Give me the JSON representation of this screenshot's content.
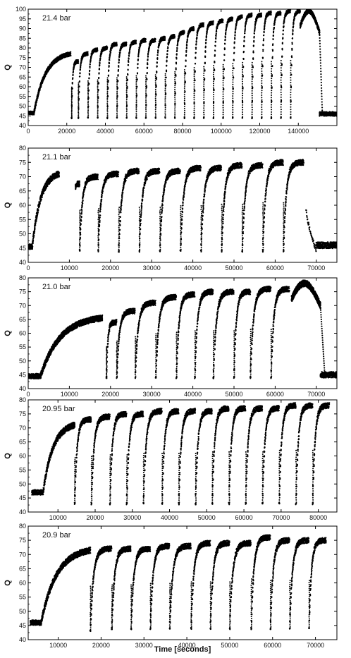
{
  "figure": {
    "xlabel": "Time  [seconds]"
  },
  "colors": {
    "trace": "#000000",
    "frame": "#000000"
  },
  "chart_data": [
    {
      "type": "scatter",
      "panel_label": "21.4 bar",
      "ylabel": "Q",
      "xlim": [
        0,
        160000
      ],
      "ylim": [
        40,
        100
      ],
      "xticks": [
        0,
        20000,
        40000,
        60000,
        80000,
        100000,
        120000,
        140000
      ],
      "yticks": [
        40,
        45,
        50,
        55,
        60,
        65,
        70,
        75,
        80,
        85,
        90,
        95,
        100
      ],
      "baseline": {
        "x0": 0,
        "x1": 3000,
        "y": 46.5
      },
      "initial_rise": {
        "x0": 3000,
        "x1": 22000,
        "y0": 46.5,
        "y1": 77
      },
      "cycles": [
        {
          "start": 22500,
          "end": 26000,
          "min": 44,
          "max": 73
        },
        {
          "start": 26000,
          "end": 31000,
          "min": 44,
          "max": 77
        },
        {
          "start": 31000,
          "end": 36000,
          "min": 44,
          "max": 79
        },
        {
          "start": 36000,
          "end": 41000,
          "min": 44,
          "max": 80
        },
        {
          "start": 41000,
          "end": 46000,
          "min": 44,
          "max": 82
        },
        {
          "start": 46000,
          "end": 51000,
          "min": 44,
          "max": 82
        },
        {
          "start": 51000,
          "end": 56000,
          "min": 44,
          "max": 83
        },
        {
          "start": 56000,
          "end": 61000,
          "min": 44,
          "max": 84
        },
        {
          "start": 61000,
          "end": 66000,
          "min": 44,
          "max": 84
        },
        {
          "start": 66000,
          "end": 71000,
          "min": 44,
          "max": 85
        },
        {
          "start": 71000,
          "end": 76000,
          "min": 44,
          "max": 86
        },
        {
          "start": 76000,
          "end": 81000,
          "min": 44,
          "max": 88
        },
        {
          "start": 81000,
          "end": 86000,
          "min": 44,
          "max": 90
        },
        {
          "start": 86000,
          "end": 91000,
          "min": 44,
          "max": 92
        },
        {
          "start": 91000,
          "end": 96000,
          "min": 44,
          "max": 93
        },
        {
          "start": 96000,
          "end": 101000,
          "min": 44,
          "max": 94
        },
        {
          "start": 101000,
          "end": 106000,
          "min": 44,
          "max": 95
        },
        {
          "start": 106000,
          "end": 111000,
          "min": 44,
          "max": 96
        },
        {
          "start": 111000,
          "end": 116000,
          "min": 44,
          "max": 97
        },
        {
          "start": 116000,
          "end": 121000,
          "min": 44,
          "max": 97
        },
        {
          "start": 121000,
          "end": 126000,
          "min": 44,
          "max": 98
        },
        {
          "start": 126000,
          "end": 131000,
          "min": 44,
          "max": 98
        },
        {
          "start": 131000,
          "end": 136000,
          "min": 44,
          "max": 99
        },
        {
          "start": 136000,
          "end": 141000,
          "min": 44,
          "max": 99
        }
      ],
      "dome": {
        "x0": 141000,
        "x1": 151000,
        "ymin": 88,
        "ymax": 99
      },
      "tail": {
        "x0": 151000,
        "x1": 160000,
        "y": 46
      }
    },
    {
      "type": "scatter",
      "panel_label": "21.1 bar",
      "ylabel": "Q",
      "xlim": [
        0,
        75000
      ],
      "ylim": [
        40,
        80
      ],
      "xticks": [
        0,
        10000,
        20000,
        30000,
        40000,
        50000,
        60000,
        70000
      ],
      "yticks": [
        40,
        45,
        50,
        55,
        60,
        65,
        70,
        75,
        80
      ],
      "baseline": {
        "x0": 0,
        "x1": 1000,
        "y": 45.5
      },
      "initial_rise": {
        "x0": 1000,
        "x1": 7500,
        "y0": 45.5,
        "y1": 71
      },
      "cycles": [
        {
          "start": 11500,
          "end": 12500,
          "min": 66,
          "max": 67.5
        },
        {
          "start": 12500,
          "end": 17000,
          "min": 44,
          "max": 70
        },
        {
          "start": 17000,
          "end": 22000,
          "min": 44,
          "max": 71
        },
        {
          "start": 22000,
          "end": 27000,
          "min": 44,
          "max": 72
        },
        {
          "start": 27000,
          "end": 32000,
          "min": 44,
          "max": 72
        },
        {
          "start": 32000,
          "end": 37000,
          "min": 44,
          "max": 72
        },
        {
          "start": 37000,
          "end": 42000,
          "min": 44,
          "max": 73
        },
        {
          "start": 42000,
          "end": 47000,
          "min": 44,
          "max": 73
        },
        {
          "start": 47000,
          "end": 52000,
          "min": 44,
          "max": 74
        },
        {
          "start": 52000,
          "end": 57000,
          "min": 44,
          "max": 74
        },
        {
          "start": 57000,
          "end": 62000,
          "min": 44,
          "max": 75
        },
        {
          "start": 62000,
          "end": 67000,
          "min": 44,
          "max": 75
        }
      ],
      "spike": {
        "x0": 67500,
        "x1": 70000,
        "ymin": 44,
        "ymax": 59
      },
      "tail": {
        "x0": 70000,
        "x1": 75000,
        "y": 46
      }
    },
    {
      "type": "scatter",
      "panel_label": "21.0 bar",
      "ylabel": "Q",
      "xlim": [
        0,
        75000
      ],
      "ylim": [
        40,
        80
      ],
      "xticks": [
        0,
        10000,
        20000,
        30000,
        40000,
        50000,
        60000,
        70000
      ],
      "yticks": [
        40,
        45,
        50,
        55,
        60,
        65,
        70,
        75,
        80
      ],
      "baseline": {
        "x0": 0,
        "x1": 3000,
        "y": 44.5
      },
      "initial_rise": {
        "x0": 3000,
        "x1": 18000,
        "y0": 44.5,
        "y1": 65.5
      },
      "cycles": [
        {
          "start": 19000,
          "end": 21500,
          "min": 44,
          "max": 64
        },
        {
          "start": 21500,
          "end": 26000,
          "min": 44,
          "max": 68
        },
        {
          "start": 26000,
          "end": 31000,
          "min": 44,
          "max": 71
        },
        {
          "start": 31000,
          "end": 36000,
          "min": 44,
          "max": 73
        },
        {
          "start": 36000,
          "end": 40500,
          "min": 44,
          "max": 74
        },
        {
          "start": 40500,
          "end": 45000,
          "min": 44,
          "max": 75
        },
        {
          "start": 45000,
          "end": 50000,
          "min": 44,
          "max": 75
        },
        {
          "start": 50000,
          "end": 54000,
          "min": 44,
          "max": 75
        },
        {
          "start": 54000,
          "end": 59000,
          "min": 44,
          "max": 76
        },
        {
          "start": 59000,
          "end": 63500,
          "min": 44,
          "max": 76
        }
      ],
      "dome": {
        "x0": 64000,
        "x1": 71000,
        "ymin": 70,
        "ymax": 78
      },
      "tail": {
        "x0": 71000,
        "x1": 75000,
        "y": 45
      }
    },
    {
      "type": "scatter",
      "panel_label": "20.95 bar",
      "ylabel": "Q",
      "xlim": [
        2000,
        85000
      ],
      "ylim": [
        40,
        80
      ],
      "xticks": [
        10000,
        20000,
        30000,
        40000,
        50000,
        60000,
        70000,
        80000
      ],
      "yticks": [
        40,
        45,
        50,
        55,
        60,
        65,
        70,
        75,
        80
      ],
      "baseline": {
        "x0": 3000,
        "x1": 6000,
        "y": 47
      },
      "initial_rise": {
        "x0": 6000,
        "x1": 14500,
        "y0": 47,
        "y1": 71
      },
      "cycles": [
        {
          "start": 14500,
          "end": 19000,
          "min": 43,
          "max": 73
        },
        {
          "start": 19000,
          "end": 24000,
          "min": 43,
          "max": 74
        },
        {
          "start": 24000,
          "end": 28500,
          "min": 43,
          "max": 75
        },
        {
          "start": 28500,
          "end": 33000,
          "min": 43,
          "max": 75
        },
        {
          "start": 33000,
          "end": 38000,
          "min": 43,
          "max": 76
        },
        {
          "start": 38000,
          "end": 42500,
          "min": 43,
          "max": 76
        },
        {
          "start": 42500,
          "end": 47000,
          "min": 43,
          "max": 76
        },
        {
          "start": 47000,
          "end": 51500,
          "min": 43,
          "max": 76
        },
        {
          "start": 51500,
          "end": 56000,
          "min": 43,
          "max": 77
        },
        {
          "start": 56000,
          "end": 60500,
          "min": 43,
          "max": 77
        },
        {
          "start": 60500,
          "end": 65000,
          "min": 43,
          "max": 77
        },
        {
          "start": 65000,
          "end": 69500,
          "min": 43,
          "max": 77
        },
        {
          "start": 69500,
          "end": 74000,
          "min": 43,
          "max": 78
        },
        {
          "start": 74000,
          "end": 78500,
          "min": 43,
          "max": 78
        },
        {
          "start": 78500,
          "end": 83000,
          "min": 43,
          "max": 78
        }
      ]
    },
    {
      "type": "scatter",
      "panel_label": "20.9 bar",
      "ylabel": "Q",
      "xlabel": "Time  [seconds]",
      "xlim": [
        3000,
        75000
      ],
      "ylim": [
        40,
        80
      ],
      "xticks": [
        10000,
        20000,
        30000,
        40000,
        50000,
        60000,
        70000
      ],
      "yticks": [
        40,
        45,
        50,
        55,
        60,
        65,
        70,
        75,
        80
      ],
      "baseline": {
        "x0": 3500,
        "x1": 6000,
        "y": 46
      },
      "initial_rise": {
        "x0": 6000,
        "x1": 17500,
        "y0": 46,
        "y1": 71.5
      },
      "cycles": [
        {
          "start": 17500,
          "end": 22500,
          "min": 43,
          "max": 72
        },
        {
          "start": 22500,
          "end": 27000,
          "min": 44,
          "max": 72
        },
        {
          "start": 27000,
          "end": 31500,
          "min": 44,
          "max": 72
        },
        {
          "start": 31500,
          "end": 36000,
          "min": 44,
          "max": 73
        },
        {
          "start": 36000,
          "end": 41000,
          "min": 44,
          "max": 73
        },
        {
          "start": 41000,
          "end": 45500,
          "min": 44,
          "max": 74
        },
        {
          "start": 45500,
          "end": 50000,
          "min": 44,
          "max": 74
        },
        {
          "start": 50000,
          "end": 55000,
          "min": 44,
          "max": 74
        },
        {
          "start": 55000,
          "end": 59500,
          "min": 44,
          "max": 76
        },
        {
          "start": 59500,
          "end": 64000,
          "min": 44,
          "max": 75
        },
        {
          "start": 64000,
          "end": 68500,
          "min": 44,
          "max": 75
        },
        {
          "start": 68500,
          "end": 72500,
          "min": 44,
          "max": 75
        }
      ]
    }
  ]
}
